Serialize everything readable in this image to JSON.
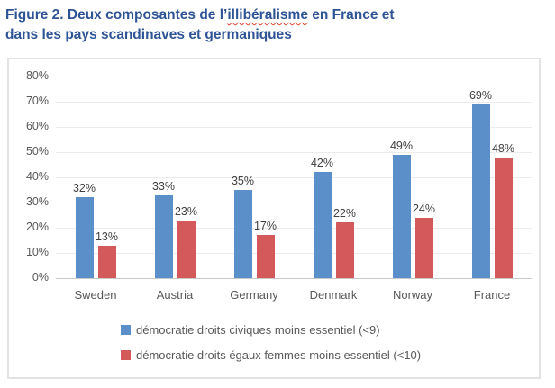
{
  "title": {
    "part1": "Figure 2. Deux composantes de l’",
    "misspelled_word": "illibéralisme",
    "part2": " en France et",
    "line2": "dans les pays scandinaves et germaniques",
    "color": "#2F5496"
  },
  "chart_data": {
    "type": "bar",
    "categories": [
      "Sweden",
      "Austria",
      "Germany",
      "Denmark",
      "Norway",
      "France"
    ],
    "series": [
      {
        "name": "démocratie droits civiques moins essentiel (<9)",
        "color": "#5B8FC9",
        "values": [
          32,
          33,
          35,
          42,
          49,
          69
        ]
      },
      {
        "name": "démocratie droits égaux femmes moins essentiel (<10)",
        "color": "#D4595A",
        "values": [
          13,
          23,
          17,
          22,
          24,
          48
        ]
      }
    ],
    "ylim": [
      0,
      80
    ],
    "ytick_step": 10,
    "ytick_labels": [
      "0%",
      "10%",
      "20%",
      "30%",
      "40%",
      "50%",
      "60%",
      "70%",
      "80%"
    ],
    "data_label_suffix": "%",
    "grid": true,
    "legend_position": "bottom-left-indented",
    "gridline_color": "#EBEBEB",
    "baseline_color": "#C9C9C9"
  }
}
